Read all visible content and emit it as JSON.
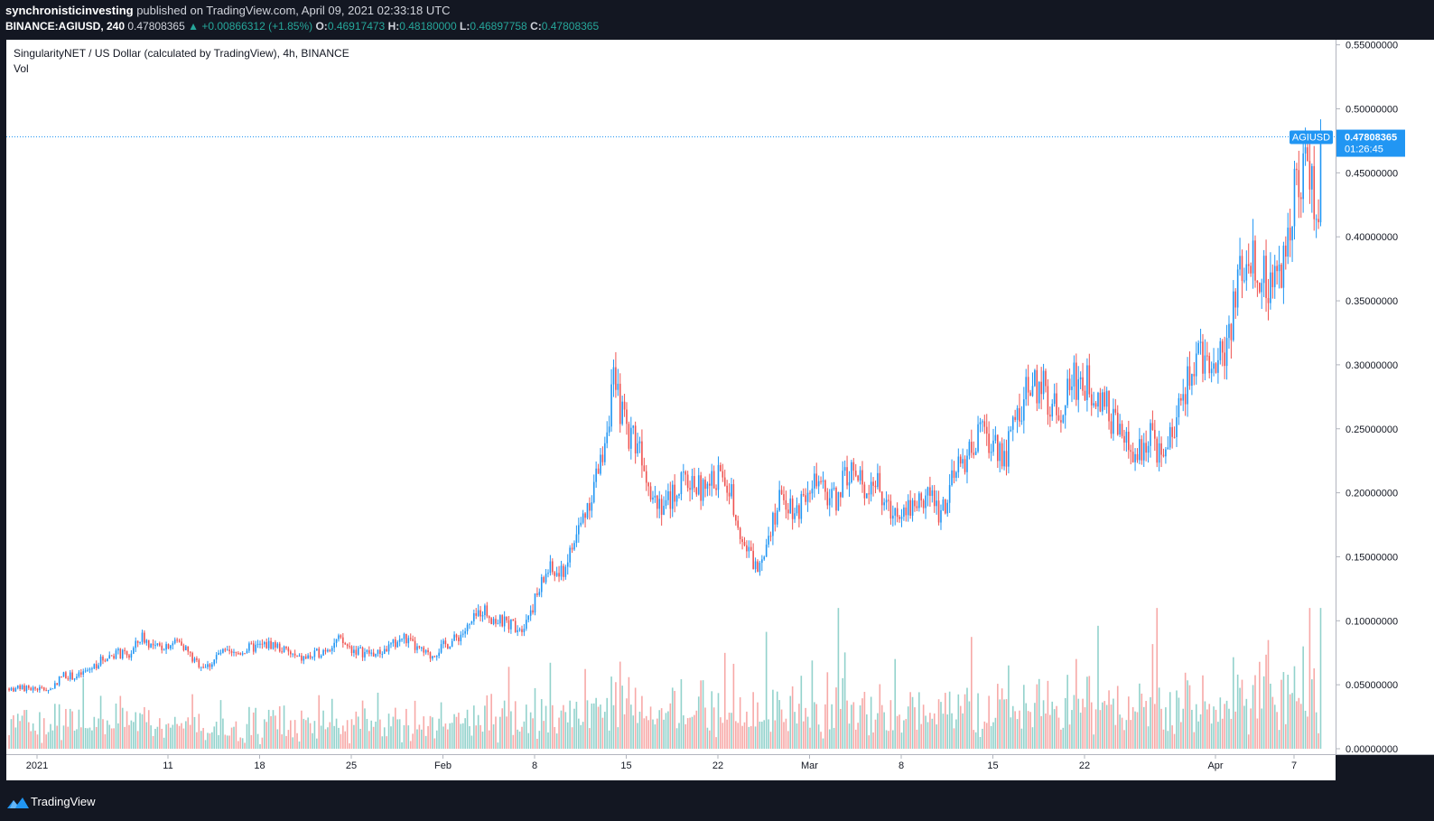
{
  "header": {
    "author": "synchronisticinvesting",
    "published_text": " published on TradingView.com, April 09, 2021 02:33:18 UTC",
    "symbol": "BINANCE:AGIUSD, 240",
    "last": "0.47808365",
    "change": "+0.00866312 (+1.85%)",
    "o_label": "O:",
    "o_value": "0.46917473",
    "h_label": "H:",
    "h_value": "0.48180000",
    "l_label": "L:",
    "l_value": "0.46897758",
    "c_label": "C:",
    "c_value": "0.47808365"
  },
  "footer": {
    "brand": "TradingView",
    "brand_icon": "tradingview-logo-icon"
  },
  "colors": {
    "background": "#131722",
    "up": "#2196f3",
    "down": "#ef5350",
    "vol_up": "#26a69a",
    "vol_down": "#ef5350",
    "price_tag": "#2196f3",
    "grid": "#363a45",
    "axis_text": "#b2b5be"
  },
  "chart_data": {
    "type": "candlestick",
    "title": "SingularityNET / US Dollar (calculated by TradingView), 4h, BINANCE",
    "subtitle": "Vol",
    "ylim": [
      0,
      0.56
    ],
    "y_ticks": [
      "0.55000000",
      "0.50000000",
      "0.45000000",
      "0.40000000",
      "0.35000000",
      "0.30000000",
      "0.25000000",
      "0.20000000",
      "0.15000000",
      "0.10000000",
      "0.05000000",
      "0.00000000"
    ],
    "y_tick_values": [
      0.55,
      0.5,
      0.45,
      0.4,
      0.35,
      0.3,
      0.25,
      0.2,
      0.15,
      0.1,
      0.05,
      0.0
    ],
    "x_ticks": [
      "2021",
      "11",
      "18",
      "25",
      "Feb",
      "8",
      "15",
      "22",
      "Mar",
      "8",
      "15",
      "22",
      "Apr",
      "7"
    ],
    "x_tick_days": [
      0,
      10,
      17,
      24,
      31,
      38,
      45,
      52,
      59,
      66,
      73,
      80,
      90,
      96
    ],
    "last_price_tag": {
      "symbol": "AGIUSD",
      "price": "0.47808365",
      "countdown": "01:26:45",
      "value": 0.47808365
    },
    "price_path": [
      [
        0,
        0.047
      ],
      [
        1,
        0.046
      ],
      [
        2,
        0.058
      ],
      [
        3,
        0.056
      ],
      [
        4,
        0.062
      ],
      [
        5,
        0.07
      ],
      [
        6,
        0.075
      ],
      [
        7,
        0.072
      ],
      [
        8,
        0.088
      ],
      [
        9,
        0.078
      ],
      [
        10,
        0.082
      ],
      [
        11,
        0.084
      ],
      [
        12,
        0.068
      ],
      [
        13,
        0.064
      ],
      [
        14,
        0.075
      ],
      [
        15,
        0.073
      ],
      [
        16,
        0.078
      ],
      [
        17,
        0.08
      ],
      [
        18,
        0.082
      ],
      [
        19,
        0.076
      ],
      [
        20,
        0.07
      ],
      [
        21,
        0.072
      ],
      [
        22,
        0.078
      ],
      [
        23,
        0.085
      ],
      [
        24,
        0.078
      ],
      [
        25,
        0.075
      ],
      [
        26,
        0.074
      ],
      [
        27,
        0.08
      ],
      [
        28,
        0.087
      ],
      [
        29,
        0.078
      ],
      [
        30,
        0.072
      ],
      [
        31,
        0.08
      ],
      [
        32,
        0.086
      ],
      [
        33,
        0.095
      ],
      [
        34,
        0.11
      ],
      [
        35,
        0.1
      ],
      [
        36,
        0.098
      ],
      [
        37,
        0.095
      ],
      [
        38,
        0.115
      ],
      [
        39,
        0.14
      ],
      [
        40,
        0.135
      ],
      [
        41,
        0.16
      ],
      [
        42,
        0.19
      ],
      [
        43,
        0.22
      ],
      [
        44,
        0.285
      ],
      [
        45,
        0.25
      ],
      [
        46,
        0.24
      ],
      [
        47,
        0.2
      ],
      [
        48,
        0.19
      ],
      [
        49,
        0.205
      ],
      [
        50,
        0.21
      ],
      [
        51,
        0.2
      ],
      [
        52,
        0.215
      ],
      [
        53,
        0.2
      ],
      [
        54,
        0.16
      ],
      [
        55,
        0.14
      ],
      [
        56,
        0.175
      ],
      [
        57,
        0.2
      ],
      [
        58,
        0.185
      ],
      [
        59,
        0.21
      ],
      [
        60,
        0.2
      ],
      [
        61,
        0.195
      ],
      [
        62,
        0.22
      ],
      [
        63,
        0.205
      ],
      [
        64,
        0.21
      ],
      [
        65,
        0.185
      ],
      [
        66,
        0.19
      ],
      [
        67,
        0.19
      ],
      [
        68,
        0.2
      ],
      [
        69,
        0.185
      ],
      [
        70,
        0.21
      ],
      [
        71,
        0.23
      ],
      [
        72,
        0.245
      ],
      [
        73,
        0.24
      ],
      [
        74,
        0.23
      ],
      [
        75,
        0.265
      ],
      [
        76,
        0.285
      ],
      [
        77,
        0.28
      ],
      [
        78,
        0.26
      ],
      [
        79,
        0.29
      ],
      [
        80,
        0.285
      ],
      [
        81,
        0.28
      ],
      [
        82,
        0.26
      ],
      [
        83,
        0.24
      ],
      [
        84,
        0.225
      ],
      [
        85,
        0.25
      ],
      [
        86,
        0.22
      ],
      [
        87,
        0.26
      ],
      [
        88,
        0.29
      ],
      [
        89,
        0.31
      ],
      [
        90,
        0.3
      ],
      [
        91,
        0.32
      ],
      [
        92,
        0.38
      ],
      [
        93,
        0.385
      ],
      [
        94,
        0.36
      ],
      [
        95,
        0.37
      ],
      [
        96,
        0.44
      ],
      [
        97,
        0.46
      ],
      [
        98,
        0.4
      ],
      [
        99,
        0.43
      ],
      [
        100,
        0.478
      ]
    ],
    "volume_max_approx": 0.11
  }
}
